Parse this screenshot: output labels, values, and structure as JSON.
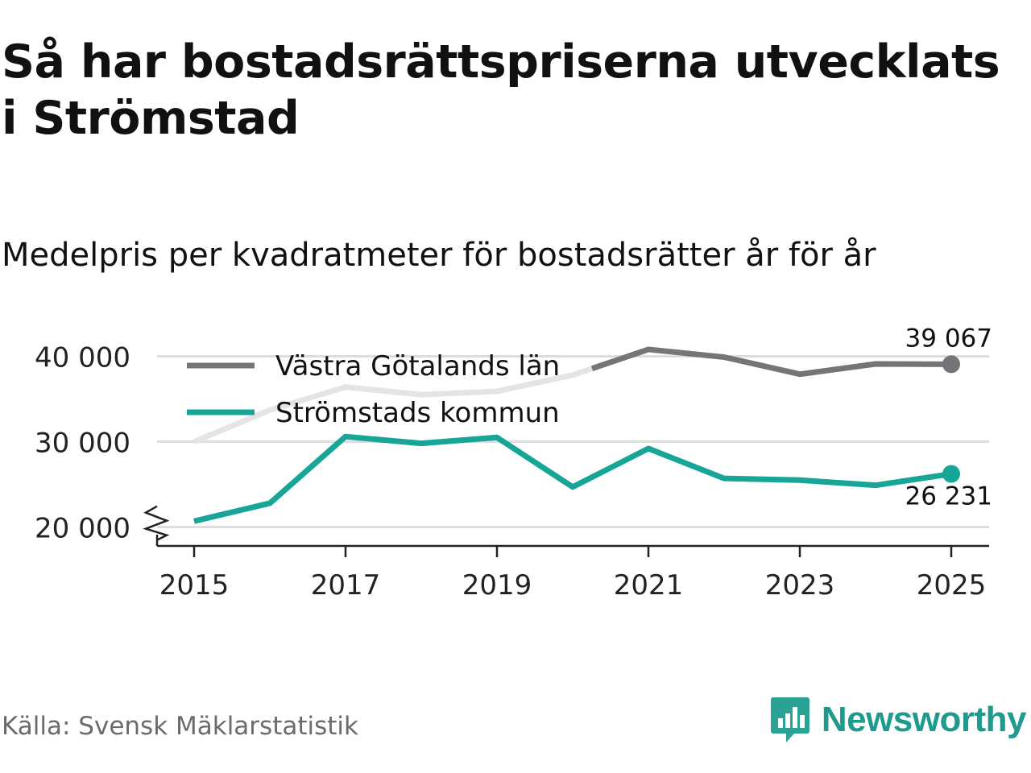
{
  "header": {
    "title": "Så har bostadsrättspriserna utvecklats i Strömstad",
    "subtitle": "Medelpris per kvadratmeter för bostadsrätter år för år"
  },
  "footer": {
    "source": "Källa: Svensk Mäklarstatistik",
    "brand": "Newsworthy"
  },
  "colors": {
    "vastra": "#757479",
    "vastra_faded": "#e4e4e4",
    "stromstad": "#16a597",
    "grid": "#dddddd",
    "axis": "#222222",
    "brand": "#1f9a8e"
  },
  "chart_data": {
    "type": "line",
    "title": "Medelpris per kvadratmeter för bostadsrätter år för år",
    "x": [
      2015,
      2016,
      2017,
      2018,
      2019,
      2020,
      2021,
      2022,
      2023,
      2024,
      2025
    ],
    "x_ticks": [
      "2015",
      "2017",
      "2019",
      "2021",
      "2023",
      "2025"
    ],
    "y_ticks": [
      20000,
      30000,
      40000
    ],
    "y_tick_labels": [
      "20 000",
      "30 000",
      "40 000"
    ],
    "ylim": [
      17800,
      44000
    ],
    "broken_axis": true,
    "grid": "horizontal",
    "legend_position": "top-left",
    "series": [
      {
        "name": "Västra Götalands län",
        "key": "vastra",
        "values": [
          30000,
          33700,
          36400,
          35500,
          35900,
          37800,
          40800,
          39900,
          37900,
          39100,
          39067
        ],
        "end_label": "39 067"
      },
      {
        "name": "Strömstads kommun",
        "key": "stromstad",
        "values": [
          20700,
          22800,
          30600,
          29800,
          30500,
          24700,
          29200,
          25700,
          25500,
          24900,
          26231
        ],
        "end_label": "26 231"
      }
    ]
  }
}
